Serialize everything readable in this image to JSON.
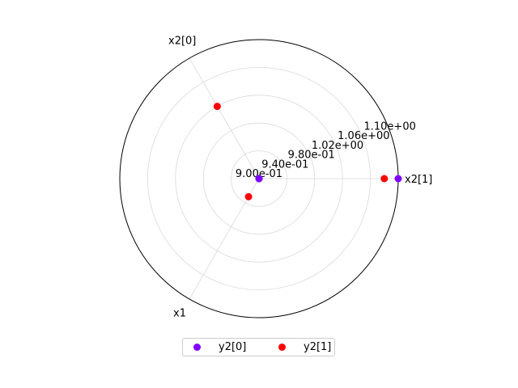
{
  "chart_data": {
    "type": "scatter",
    "projection": "polar",
    "axes": [
      "x1",
      "x2[0]",
      "x2[1]"
    ],
    "radial_ticks": [
      "9.00e-01",
      "9.40e-01",
      "9.80e-01",
      "1.02e+00",
      "1.06e+00",
      "1.10e+00"
    ],
    "rlim": [
      0.9,
      1.1
    ],
    "grid": true,
    "legend_position": "bottom-center",
    "series": [
      {
        "name": "y2[0]",
        "color": "#7f00ff",
        "values": [
          0.9,
          0.9,
          1.1
        ]
      },
      {
        "name": "y2[1]",
        "color": "#ff0000",
        "values": [
          0.93,
          1.02,
          1.08
        ]
      }
    ]
  }
}
